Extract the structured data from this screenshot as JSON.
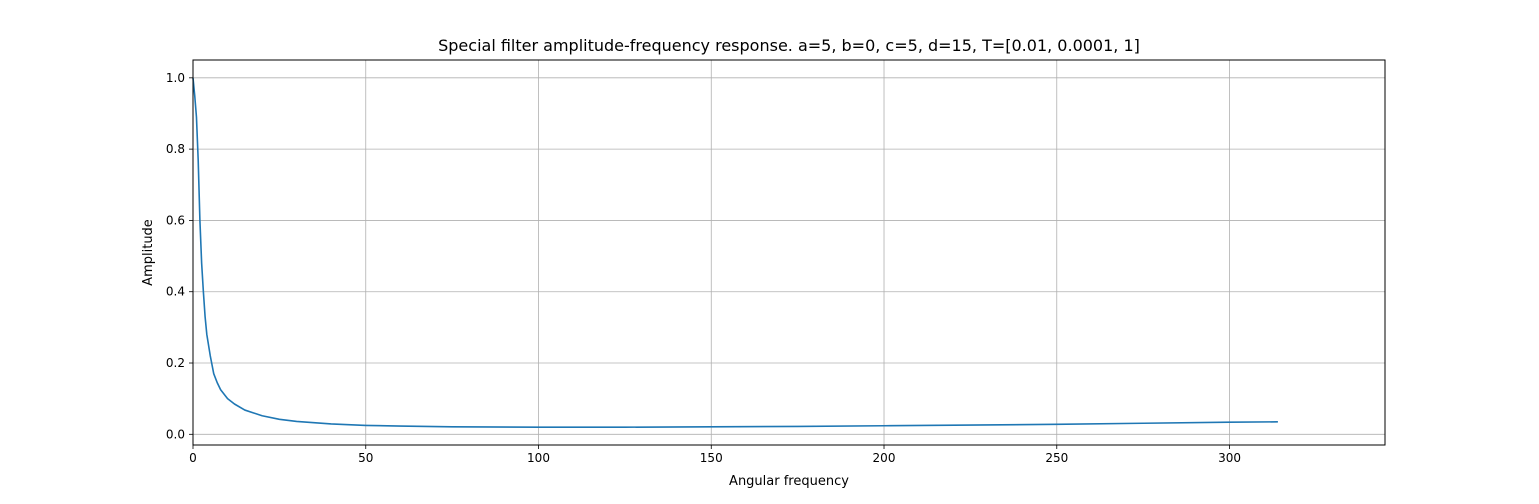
{
  "chart_data": {
    "type": "line",
    "title": "Special filter amplitude-frequency response. a=5, b=0, c=5, d=15, T=[0.01, 0.0001, 1]",
    "xlabel": "Angular frequency",
    "ylabel": "Amplitude",
    "xlim": [
      0,
      345
    ],
    "ylim": [
      -0.03,
      1.05
    ],
    "xticks": [
      0,
      50,
      100,
      150,
      200,
      250,
      300
    ],
    "xtick_labels": [
      "0",
      "50",
      "100",
      "150",
      "200",
      "250",
      "300"
    ],
    "yticks": [
      0.0,
      0.2,
      0.4,
      0.6,
      0.8,
      1.0
    ],
    "ytick_labels": [
      "0.0",
      "0.2",
      "0.4",
      "0.6",
      "0.8",
      "1.0"
    ],
    "grid": true,
    "series": [
      {
        "color": "#1f77b4",
        "x": [
          0,
          0.5,
          1,
          1.5,
          2,
          2.5,
          3,
          3.5,
          4,
          5,
          6,
          7,
          8,
          10,
          12,
          15,
          20,
          25,
          30,
          40,
          50,
          60,
          75,
          100,
          125,
          150,
          175,
          200,
          225,
          250,
          275,
          300,
          314
        ],
        "y": [
          1.0,
          0.95,
          0.89,
          0.77,
          0.6,
          0.48,
          0.4,
          0.33,
          0.28,
          0.22,
          0.17,
          0.145,
          0.125,
          0.1,
          0.085,
          0.068,
          0.052,
          0.042,
          0.036,
          0.029,
          0.025,
          0.023,
          0.021,
          0.02,
          0.02,
          0.021,
          0.022,
          0.024,
          0.026,
          0.028,
          0.031,
          0.034,
          0.035
        ]
      }
    ]
  }
}
